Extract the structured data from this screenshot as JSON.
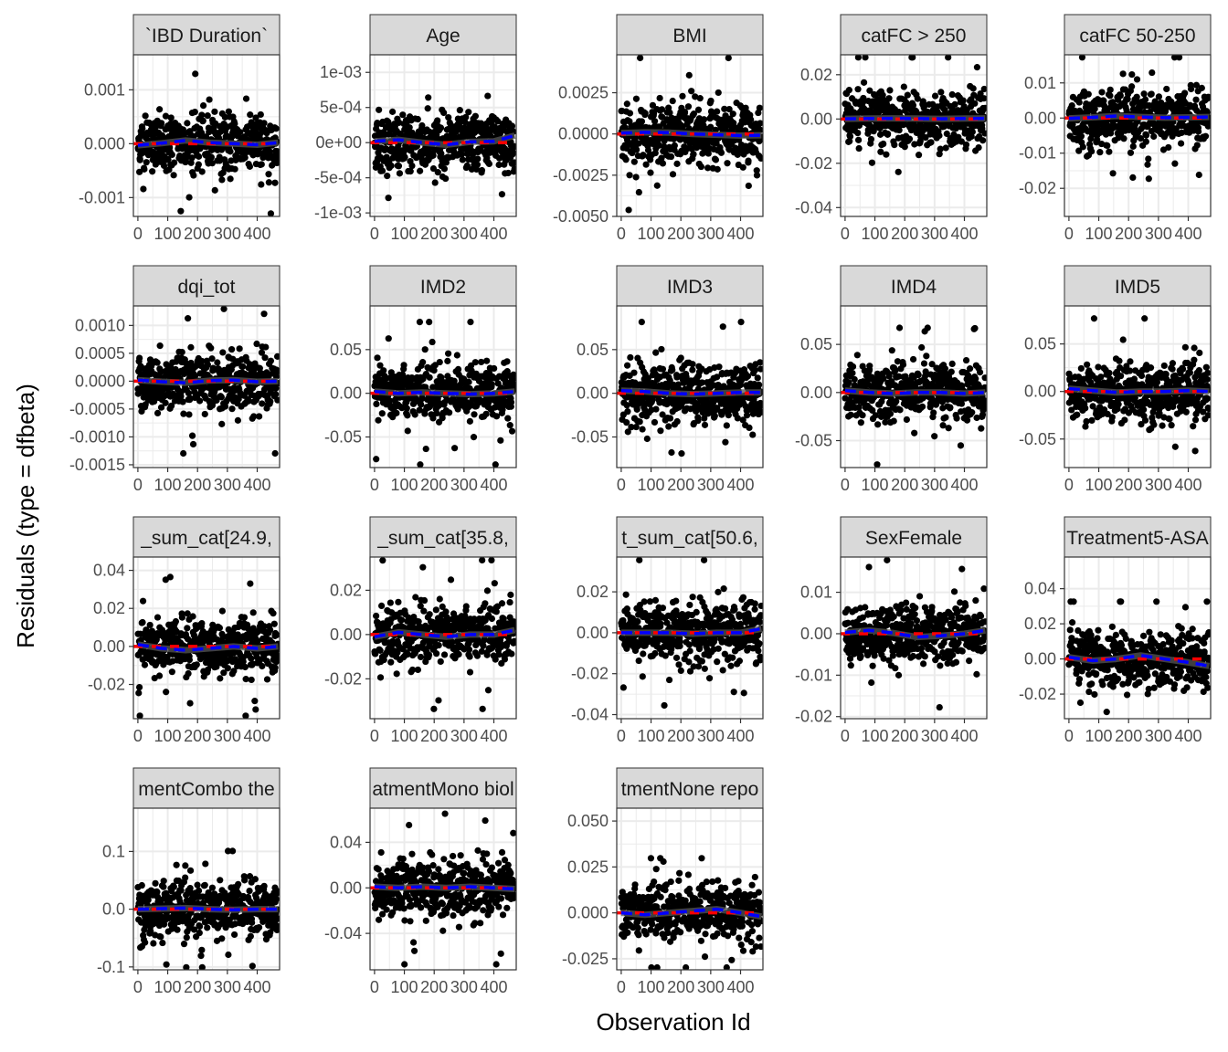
{
  "chart_data": {
    "type": "scatter",
    "title": "",
    "xlabel": "Observation Id",
    "ylabel": "Residuals (type = dfbeta)",
    "grid": true,
    "colors": {
      "points": "#000000",
      "zero_line": "#ff0000",
      "smooth_line": "#0000ff",
      "loess_band": "#555555",
      "strip_fill": "#d9d9d9",
      "grid": "#ebebeb"
    },
    "shared_x": {
      "lim": [
        -15,
        475
      ],
      "ticks": [
        0,
        100,
        200,
        300,
        400
      ],
      "tick_labels": [
        "0",
        "100",
        "200",
        "300",
        "400"
      ]
    },
    "facets": [
      {
        "name": "`IBD Duration`",
        "ylim": [
          -0.00135,
          0.00165
        ],
        "ticks": [
          -0.001,
          0,
          0.001
        ],
        "tick_labels": [
          "-0.001",
          "0.000",
          "0.001"
        ],
        "smooth": [
          [
            0,
            -3e-05
          ],
          [
            80,
            1e-05
          ],
          [
            160,
            6e-05
          ],
          [
            240,
            2e-05
          ],
          [
            320,
            0.0
          ],
          [
            400,
            -2e-05
          ],
          [
            470,
            2e-05
          ]
        ]
      },
      {
        "name": "Age",
        "ylim": [
          -0.00105,
          0.00125
        ],
        "ticks": [
          -0.001,
          -0.0005,
          0,
          0.0005,
          0.001
        ],
        "tick_labels": [
          "-1e-03",
          "-5e-04",
          "0e+00",
          "5e-04",
          "1e-03"
        ],
        "smooth": [
          [
            0,
            2e-05
          ],
          [
            80,
            4e-05
          ],
          [
            160,
            0.0
          ],
          [
            240,
            -3e-05
          ],
          [
            320,
            1e-05
          ],
          [
            400,
            2e-05
          ],
          [
            470,
            0.0001
          ]
        ]
      },
      {
        "name": "BMI",
        "ylim": [
          -0.005,
          0.0048
        ],
        "ticks": [
          -0.005,
          -0.0025,
          0,
          0.0025
        ],
        "tick_labels": [
          "-0.0050",
          "-0.0025",
          "0.0000",
          "0.0025"
        ],
        "smooth": [
          [
            0,
            5e-05
          ],
          [
            80,
            0.0001
          ],
          [
            160,
            8e-05
          ],
          [
            240,
            0.0
          ],
          [
            320,
            -5e-05
          ],
          [
            400,
            -0.0001
          ],
          [
            470,
            -8e-05
          ]
        ]
      },
      {
        "name": "catFC > 250",
        "ylim": [
          -0.044,
          0.029
        ],
        "ticks": [
          -0.04,
          -0.02,
          0,
          0.02
        ],
        "tick_labels": [
          "-0.04",
          "-0.02",
          "0.00",
          "0.02"
        ],
        "smooth": [
          [
            0,
            0.0001
          ],
          [
            80,
            0.0002
          ],
          [
            160,
            0.0003
          ],
          [
            240,
            0.0002
          ],
          [
            320,
            0.0001
          ],
          [
            400,
            0.0002
          ],
          [
            470,
            0.0003
          ]
        ]
      },
      {
        "name": "catFC 50-250",
        "ylim": [
          -0.028,
          0.018
        ],
        "ticks": [
          -0.02,
          -0.01,
          0,
          0.01
        ],
        "tick_labels": [
          "-0.02",
          "-0.01",
          "0.00",
          "0.01"
        ],
        "smooth": [
          [
            0,
            -0.0001
          ],
          [
            80,
            0.0002
          ],
          [
            160,
            0.0006
          ],
          [
            240,
            0.0003
          ],
          [
            320,
            0.0001
          ],
          [
            400,
            0.0002
          ],
          [
            470,
            0.0003
          ]
        ]
      },
      {
        "name": "dqi_tot",
        "ylim": [
          -0.00155,
          0.00135
        ],
        "ticks": [
          -0.0015,
          -0.001,
          -0.0005,
          0,
          0.0005,
          0.001
        ],
        "tick_labels": [
          "-0.0015",
          "-0.0010",
          "-0.0005",
          "0.0000",
          "0.0005",
          "0.0010"
        ],
        "smooth": [
          [
            0,
            2e-05
          ],
          [
            80,
            -1e-05
          ],
          [
            160,
            -3e-05
          ],
          [
            240,
            1e-05
          ],
          [
            320,
            2e-05
          ],
          [
            400,
            -1e-05
          ],
          [
            470,
            0.0
          ]
        ]
      },
      {
        "name": "IMD2",
        "ylim": [
          -0.085,
          0.1
        ],
        "ticks": [
          -0.05,
          0,
          0.05
        ],
        "tick_labels": [
          "-0.05",
          "0.00",
          "0.05"
        ],
        "smooth": [
          [
            0,
            0.002
          ],
          [
            80,
            0.0
          ],
          [
            160,
            0.001
          ],
          [
            240,
            0.0
          ],
          [
            320,
            -0.001
          ],
          [
            400,
            0.0
          ],
          [
            470,
            0.002
          ]
        ]
      },
      {
        "name": "IMD3",
        "ylim": [
          -0.085,
          0.1
        ],
        "ticks": [
          -0.05,
          0,
          0.05
        ],
        "tick_labels": [
          "-0.05",
          "0.00",
          "0.05"
        ],
        "smooth": [
          [
            0,
            0.003
          ],
          [
            80,
            0.002
          ],
          [
            160,
            0.0
          ],
          [
            240,
            -0.001
          ],
          [
            320,
            0.0
          ],
          [
            400,
            0.001
          ],
          [
            470,
            0.001
          ]
        ]
      },
      {
        "name": "IMD4",
        "ylim": [
          -0.078,
          0.09
        ],
        "ticks": [
          -0.05,
          0,
          0.05
        ],
        "tick_labels": [
          "-0.05",
          "0.00",
          "0.05"
        ],
        "smooth": [
          [
            0,
            0.002
          ],
          [
            80,
            0.0
          ],
          [
            160,
            -0.001
          ],
          [
            240,
            0.0
          ],
          [
            320,
            0.0
          ],
          [
            400,
            -0.001
          ],
          [
            470,
            0.0
          ]
        ]
      },
      {
        "name": "IMD5",
        "ylim": [
          -0.08,
          0.09
        ],
        "ticks": [
          -0.05,
          0,
          0.05
        ],
        "tick_labels": [
          "-0.05",
          "0.00",
          "0.05"
        ],
        "smooth": [
          [
            0,
            0.003
          ],
          [
            80,
            0.001
          ],
          [
            160,
            -0.001
          ],
          [
            240,
            0.0
          ],
          [
            320,
            0.0
          ],
          [
            400,
            0.001
          ],
          [
            470,
            0.0
          ]
        ]
      },
      {
        "name": "_sum_cat[24.9,",
        "ylim": [
          -0.038,
          0.047
        ],
        "ticks": [
          -0.02,
          0,
          0.02,
          0.04
        ],
        "tick_labels": [
          "-0.02",
          "0.00",
          "0.02",
          "0.04"
        ],
        "smooth": [
          [
            0,
            0.001
          ],
          [
            80,
            -0.001
          ],
          [
            160,
            -0.002
          ],
          [
            240,
            -0.001
          ],
          [
            320,
            0.0
          ],
          [
            400,
            -0.001
          ],
          [
            470,
            0.0
          ]
        ]
      },
      {
        "name": "_sum_cat[35.8,",
        "ylim": [
          -0.038,
          0.035
        ],
        "ticks": [
          -0.02,
          0,
          0.02
        ],
        "tick_labels": [
          "-0.02",
          "0.00",
          "0.02"
        ],
        "smooth": [
          [
            0,
            -0.001
          ],
          [
            80,
            0.001
          ],
          [
            160,
            0.0
          ],
          [
            240,
            -0.001
          ],
          [
            320,
            0.0
          ],
          [
            400,
            0.0
          ],
          [
            470,
            0.002
          ]
        ]
      },
      {
        "name": "t_sum_cat[50.6,",
        "ylim": [
          -0.042,
          0.037
        ],
        "ticks": [
          -0.04,
          -0.02,
          0,
          0.02
        ],
        "tick_labels": [
          "-0.04",
          "-0.02",
          "0.00",
          "0.02"
        ],
        "smooth": [
          [
            0,
            0.0
          ],
          [
            80,
            0.0
          ],
          [
            160,
            0.0
          ],
          [
            240,
            -0.0005
          ],
          [
            320,
            0.0
          ],
          [
            400,
            0.0
          ],
          [
            470,
            0.002
          ]
        ]
      },
      {
        "name": "SexFemale",
        "ylim": [
          -0.0205,
          0.0185
        ],
        "ticks": [
          -0.02,
          -0.01,
          0,
          0.01
        ],
        "tick_labels": [
          "-0.02",
          "-0.01",
          "0.00",
          "0.01"
        ],
        "smooth": [
          [
            0,
            0.0003
          ],
          [
            80,
            0.0008
          ],
          [
            160,
            0.0002
          ],
          [
            240,
            -0.0008
          ],
          [
            320,
            -0.0005
          ],
          [
            400,
            0.0
          ],
          [
            470,
            0.0008
          ]
        ]
      },
      {
        "name": "Treatment5-ASA",
        "ylim": [
          -0.034,
          0.058
        ],
        "ticks": [
          -0.02,
          0,
          0.02,
          0.04
        ],
        "tick_labels": [
          "-0.02",
          "0.00",
          "0.02",
          "0.04"
        ],
        "smooth": [
          [
            0,
            0.001
          ],
          [
            80,
            -0.001
          ],
          [
            160,
            0.0
          ],
          [
            240,
            0.002
          ],
          [
            320,
            0.0
          ],
          [
            400,
            -0.002
          ],
          [
            470,
            -0.004
          ]
        ]
      },
      {
        "name": "mentCombo the",
        "ylim": [
          -0.105,
          0.175
        ],
        "ticks": [
          -0.1,
          0,
          0.1
        ],
        "tick_labels": [
          "-0.1",
          "0.0",
          "0.1"
        ],
        "smooth": [
          [
            0,
            0.0
          ],
          [
            80,
            0.001
          ],
          [
            160,
            0.002
          ],
          [
            240,
            0.0
          ],
          [
            320,
            -0.001
          ],
          [
            400,
            0.0
          ],
          [
            470,
            0.0
          ]
        ]
      },
      {
        "name": "atmentMono biol",
        "ylim": [
          -0.072,
          0.07
        ],
        "ticks": [
          -0.04,
          0,
          0.04
        ],
        "tick_labels": [
          "-0.04",
          "0.00",
          "0.04"
        ],
        "smooth": [
          [
            0,
            0.001
          ],
          [
            80,
            0.0
          ],
          [
            160,
            0.001
          ],
          [
            240,
            0.0
          ],
          [
            320,
            0.001
          ],
          [
            400,
            0.0
          ],
          [
            470,
            -0.001
          ]
        ]
      },
      {
        "name": "tmentNone repo",
        "ylim": [
          -0.031,
          0.057
        ],
        "ticks": [
          -0.025,
          0,
          0.025,
          0.05
        ],
        "tick_labels": [
          "-0.025",
          "0.000",
          "0.025",
          "0.050"
        ],
        "smooth": [
          [
            0,
            0.0
          ],
          [
            80,
            -0.001
          ],
          [
            160,
            0.0
          ],
          [
            240,
            0.001
          ],
          [
            320,
            0.002
          ],
          [
            400,
            0.0
          ],
          [
            470,
            -0.002
          ]
        ]
      }
    ]
  }
}
